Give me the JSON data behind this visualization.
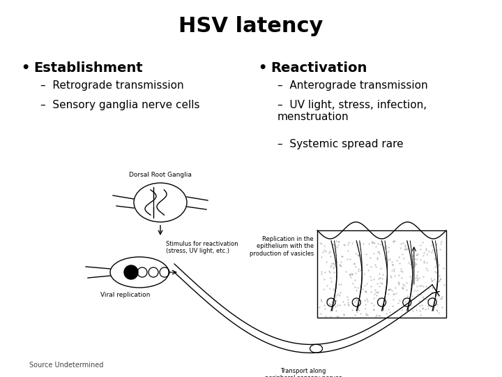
{
  "title": "HSV latency",
  "title_fontsize": 22,
  "title_fontweight": "bold",
  "bg_color": "#ffffff",
  "text_color": "#000000",
  "left_header": "Establishment",
  "left_sub": [
    "Retrograde transmission",
    "Sensory ganglia nerve cells"
  ],
  "right_header": "Reactivation",
  "right_sub_line1": "Anterograde transmission",
  "right_sub_line2a": "UV light, stress, infection,",
  "right_sub_line2b": "menstruation",
  "right_sub_line3": "Systemic spread rare",
  "footer": "Source Undetermined",
  "header_fontsize": 14,
  "sub_fontsize": 11,
  "footer_fontsize": 7,
  "diag_label_ganglia": "Dorsal Root Ganglia",
  "diag_label_stimulus": "Stimulus for reactivation\n(stress, UV light, etc.)",
  "diag_label_viral": "Viral replication",
  "diag_label_replication": "Replication in the\nepithelium with the\nproduction of vasicles",
  "diag_label_transport": "Transport along\nperipheral sensory nerves"
}
